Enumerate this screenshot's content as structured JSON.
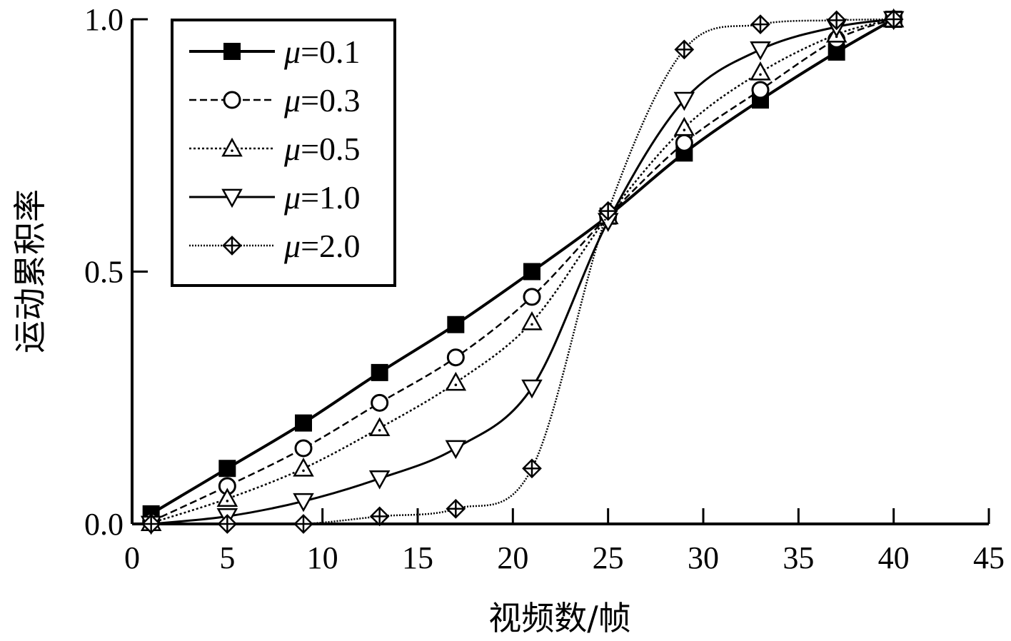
{
  "chart_data": {
    "type": "line",
    "xlabel": "视频数/帧",
    "ylabel": "运动累积率",
    "xlim": [
      0,
      45
    ],
    "ylim": [
      0.0,
      1.0
    ],
    "x_ticks": [
      "0",
      "5",
      "10",
      "15",
      "20",
      "25",
      "30",
      "35",
      "40",
      "45"
    ],
    "y_ticks": [
      "0.0",
      "0.5",
      "1.0"
    ],
    "grid": false,
    "legend_position": "top-left",
    "x": [
      1,
      5,
      9,
      13,
      17,
      21,
      25,
      29,
      33,
      37,
      40
    ],
    "series": [
      {
        "name_prefix": "μ",
        "name_suffix": "=0.1",
        "marker": "filled-square",
        "line_style": "solid",
        "values": [
          0.02,
          0.11,
          0.2,
          0.3,
          0.395,
          0.5,
          0.61,
          0.735,
          0.84,
          0.935,
          1.0
        ]
      },
      {
        "name_prefix": "μ",
        "name_suffix": "=0.3",
        "marker": "open-circle",
        "line_style": "dashed",
        "values": [
          0.005,
          0.075,
          0.15,
          0.24,
          0.33,
          0.45,
          0.61,
          0.755,
          0.86,
          0.96,
          1.0
        ]
      },
      {
        "name_prefix": "μ",
        "name_suffix": "=0.5",
        "marker": "up-triangle",
        "line_style": "dotted",
        "values": [
          0.002,
          0.05,
          0.11,
          0.19,
          0.28,
          0.4,
          0.61,
          0.785,
          0.895,
          0.97,
          1.0
        ]
      },
      {
        "name_prefix": "μ",
        "name_suffix": "=1.0",
        "marker": "down-triangle",
        "line_style": "solid-thin",
        "values": [
          0.0,
          0.015,
          0.045,
          0.09,
          0.15,
          0.27,
          0.6,
          0.84,
          0.94,
          0.985,
          1.0
        ]
      },
      {
        "name_prefix": "μ",
        "name_suffix": "=2.0",
        "marker": "crossed-diamond",
        "line_style": "dense-dotted",
        "values": [
          0.0,
          0.0,
          0.0,
          0.015,
          0.03,
          0.11,
          0.62,
          0.94,
          0.99,
          0.998,
          1.0
        ]
      }
    ]
  }
}
